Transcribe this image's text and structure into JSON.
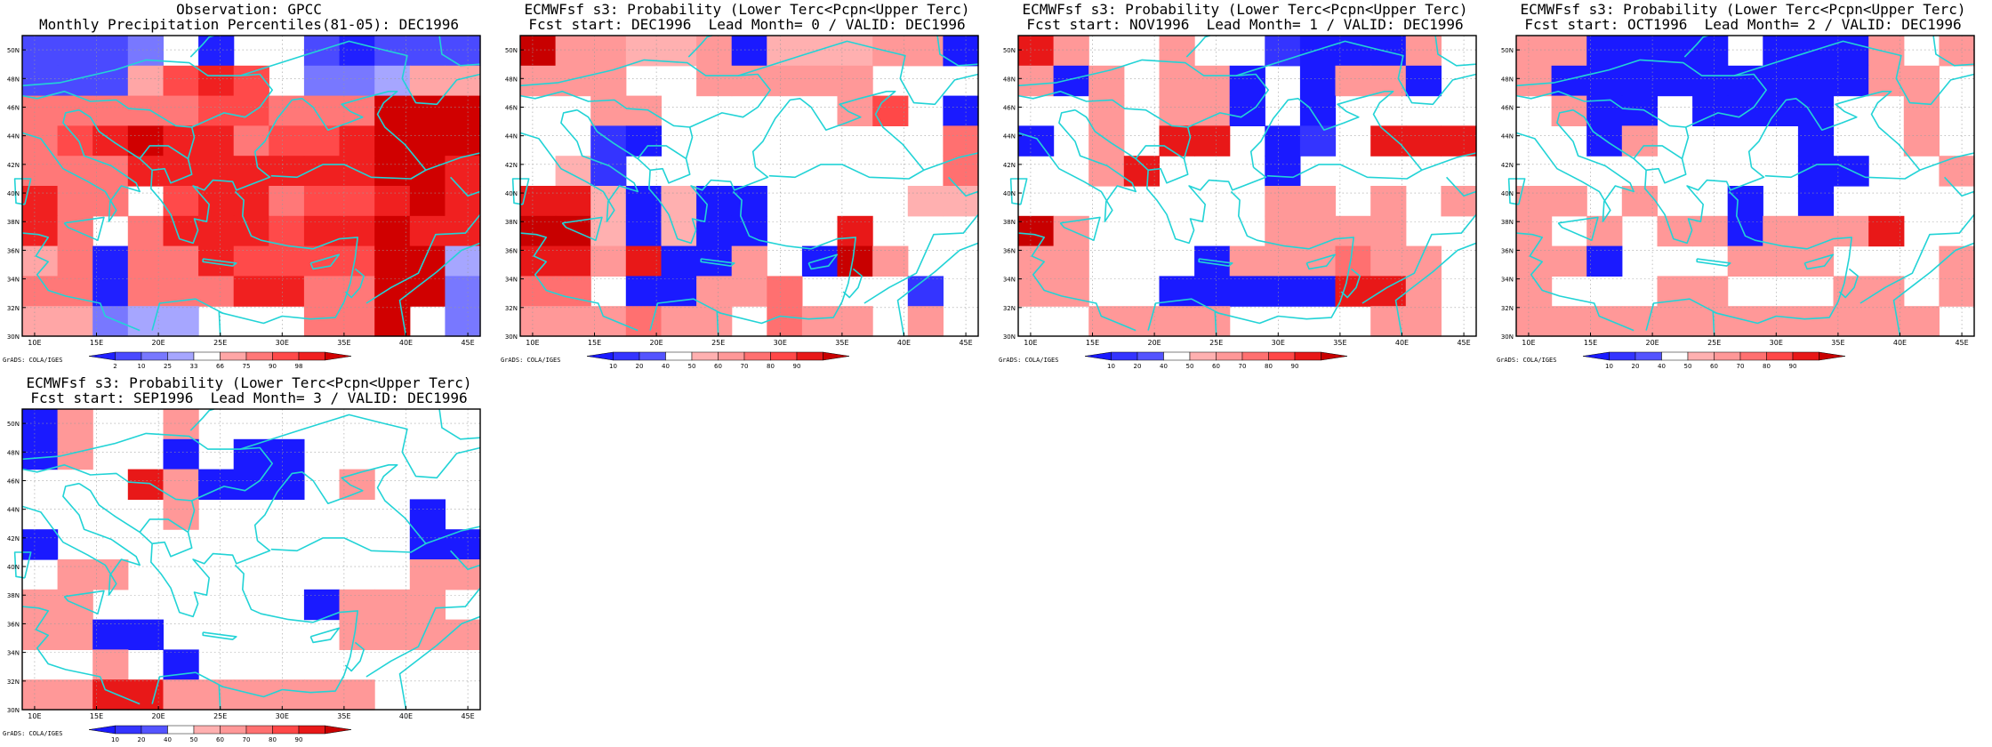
{
  "palette": {
    "obs": [
      "#2020ff",
      "#4a4aff",
      "#7878ff",
      "#a6a6ff",
      "#ffffff",
      "#ffa6a6",
      "#ff7878",
      "#ff4a4a",
      "#f02020",
      "#d00000"
    ],
    "prob": [
      "#1a1aff",
      "#3434ff",
      "#5454ff",
      "#ffffff",
      "#ffb0b0",
      "#ff9898",
      "#ff7070",
      "#ff4848",
      "#e81818",
      "#c80000"
    ],
    "coast": "#22d3d6"
  },
  "axes": {
    "lon_ticks": [
      "10E",
      "15E",
      "20E",
      "25E",
      "30E",
      "35E",
      "40E",
      "45E"
    ],
    "lat_ticks": [
      "30N",
      "32N",
      "34N",
      "36N",
      "38N",
      "40N",
      "42N",
      "44N",
      "46N",
      "48N",
      "50N"
    ],
    "lon_range": [
      9,
      46
    ],
    "lat_range": [
      30,
      51
    ]
  },
  "panels": [
    {
      "title_line1": "Observation: GPCC",
      "title_line2": "Monthly Precipitation Percentiles(81-05): DEC1996",
      "colorbar": [
        "2",
        "10",
        "25",
        "33",
        "66",
        "75",
        "90",
        "98"
      ],
      "palette": "obs",
      "credit": "GrADS: COLA/IGES",
      "grid": [
        "1112404410111",
        "1115787422355",
        "6666677666999",
        "6789886778999",
        "6668888888998",
        "8664788677898",
        "8646888788988",
        "5606687777993",
        "6606668866992",
        "5523344466942"
      ]
    },
    {
      "title_line1": "ECMWFsf s3: Probability (Lower Terc<Pcpn<Upper Terc)",
      "title_line2": "Fcst start: DEC1996  Lead Month= 0 / VALID: DEC1996",
      "colorbar": [
        "10",
        "20",
        "40",
        "50",
        "60",
        "70",
        "80",
        "90"
      ],
      "palette": "prob",
      "credit": "GrADS: COLA/IGES",
      "grid": [
        "9554450444550",
        "5553355555333",
        "3355333335730",
        "3310333333336",
        "3413333333336",
        "8840400333344",
        "9940400338333",
        "8858005309533",
        "6630055633313",
        "5556553655353"
      ]
    },
    {
      "title_line1": "ECMWFsf s3: Probability (Lower Terc<Pcpn<Upper Terc)",
      "title_line2": "Fcst start: NOV1996  Lead Month= 1 / VALID: DEC1996",
      "colorbar": [
        "10",
        "20",
        "40",
        "50",
        "60",
        "70",
        "80",
        "90"
      ],
      "palette": "prob",
      "credit": "GrADS: COLA/IGES",
      "grid": [
        "8533533100053",
        "5053550305503",
        "3353550303333",
        "0353883013888",
        "3358333033333",
        "3333333553535",
        "9533333555533",
        "5533305556553",
        "5533000008853",
        "3355553333553"
      ]
    },
    {
      "title_line1": "ECMWFsf s3: Probability (Lower Terc<Pcpn<Upper Terc)",
      "title_line2": "Fcst start: OCT1996  Lead Month= 2 / VALID: DEC1996",
      "colorbar": [
        "10",
        "20",
        "40",
        "50",
        "60",
        "70",
        "80",
        "90"
      ],
      "palette": "prob",
      "credit": "GrADS: COLA/IGES",
      "grid": [
        "5500003000535",
        "5000000000553",
        "3500300003353",
        "3305333303353",
        "3333333300335",
        "5535330303333",
        "5353550555833",
        "5503335553335",
        "5333553335535",
        "5555555555553"
      ]
    },
    {
      "title_line1": "ECMWFsf s3: Probability (Lower Terc<Pcpn<Upper Terc)",
      "title_line2": "Fcst start: SEP1996  Lead Month= 3 / VALID: DEC1996",
      "colorbar": [
        "10",
        "20",
        "40",
        "50",
        "60",
        "70",
        "80",
        "90"
      ],
      "palette": "prob",
      "credit": "GrADS: COLA/IGES",
      "grid": [
        "0533533333333",
        "0533030033333",
        "3338500035333",
        "3333533333303",
        "0333333333300",
        "3553333333355",
        "5533333305553",
        "5500333335555",
        "3353033333333",
        "5588555555333"
      ]
    }
  ]
}
